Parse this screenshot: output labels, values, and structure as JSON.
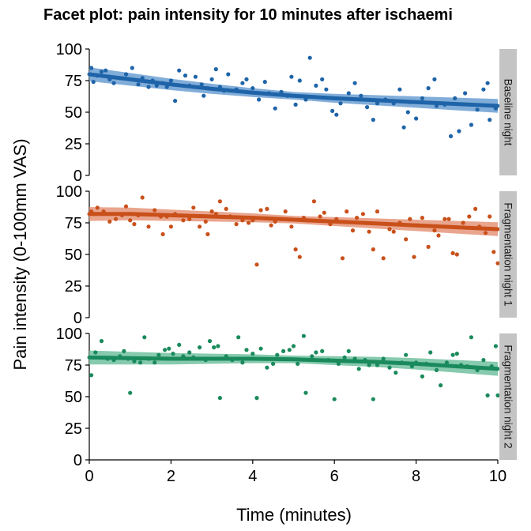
{
  "chart_data": {
    "type": "scatter",
    "title": "Facet plot: pain intensity for 10 minutes after ischaemi",
    "xlabel": "Time (minutes)",
    "ylabel": "Pain intensity (0-100mm VAS)",
    "xlim": [
      0,
      10
    ],
    "ylim": [
      0,
      100
    ],
    "x_ticks": [
      "0",
      "2",
      "4",
      "6",
      "8",
      "10"
    ],
    "y_ticks": [
      "0",
      "25",
      "50",
      "75",
      "100"
    ],
    "grid": false,
    "legend": "none",
    "trend": "smoothed fit with confidence band",
    "facets": [
      {
        "label": "Baseline night",
        "color": "#1f64a8",
        "band_color": "#6b9fd2",
        "points": [
          [
            0.05,
            85
          ],
          [
            0.1,
            74
          ],
          [
            0.2,
            79
          ],
          [
            0.3,
            82
          ],
          [
            0.4,
            83
          ],
          [
            0.5,
            76
          ],
          [
            0.6,
            73
          ],
          [
            0.9,
            80
          ],
          [
            1.05,
            85
          ],
          [
            1.2,
            72
          ],
          [
            1.3,
            77
          ],
          [
            1.45,
            70
          ],
          [
            1.55,
            75
          ],
          [
            1.65,
            71
          ],
          [
            1.8,
            73
          ],
          [
            1.9,
            70
          ],
          [
            2.0,
            75
          ],
          [
            2.1,
            59
          ],
          [
            2.2,
            83
          ],
          [
            2.35,
            79
          ],
          [
            2.45,
            71
          ],
          [
            2.6,
            78
          ],
          [
            2.75,
            72
          ],
          [
            2.8,
            63
          ],
          [
            2.9,
            69
          ],
          [
            3.0,
            76
          ],
          [
            3.1,
            84
          ],
          [
            3.2,
            70
          ],
          [
            3.3,
            67
          ],
          [
            3.4,
            80
          ],
          [
            3.6,
            68
          ],
          [
            3.75,
            73
          ],
          [
            3.85,
            76
          ],
          [
            4.0,
            69
          ],
          [
            4.15,
            60
          ],
          [
            4.3,
            74
          ],
          [
            4.4,
            65
          ],
          [
            4.55,
            53
          ],
          [
            4.7,
            66
          ],
          [
            4.85,
            63
          ],
          [
            4.95,
            78
          ],
          [
            5.05,
            56
          ],
          [
            5.15,
            75
          ],
          [
            5.3,
            60
          ],
          [
            5.4,
            93
          ],
          [
            5.55,
            71
          ],
          [
            5.7,
            76
          ],
          [
            5.8,
            68
          ],
          [
            5.95,
            51
          ],
          [
            6.05,
            48
          ],
          [
            6.15,
            57
          ],
          [
            6.35,
            65
          ],
          [
            6.5,
            73
          ],
          [
            6.65,
            63
          ],
          [
            6.8,
            54
          ],
          [
            6.95,
            44
          ],
          [
            7.05,
            57
          ],
          [
            7.25,
            60
          ],
          [
            7.45,
            57
          ],
          [
            7.6,
            68
          ],
          [
            7.7,
            38
          ],
          [
            7.8,
            50
          ],
          [
            7.85,
            58
          ],
          [
            8.0,
            45
          ],
          [
            8.15,
            61
          ],
          [
            8.3,
            69
          ],
          [
            8.45,
            76
          ],
          [
            8.5,
            55
          ],
          [
            8.7,
            56
          ],
          [
            8.85,
            31
          ],
          [
            8.95,
            61
          ],
          [
            9.05,
            35
          ],
          [
            9.2,
            65
          ],
          [
            9.35,
            40
          ],
          [
            9.5,
            52
          ],
          [
            9.65,
            68
          ],
          [
            9.75,
            73
          ],
          [
            9.8,
            44
          ],
          [
            9.9,
            55
          ],
          [
            9.95,
            53
          ]
        ],
        "trend_y": [
          80,
          76,
          72,
          68.5,
          65.5,
          63,
          61,
          59.5,
          58,
          56.5,
          55
        ]
      },
      {
        "label": "Fragmentation night 1",
        "color": "#c9501a",
        "band_color": "#e5957a",
        "points": [
          [
            0.05,
            84
          ],
          [
            0.1,
            82
          ],
          [
            0.2,
            87
          ],
          [
            0.35,
            84
          ],
          [
            0.5,
            76
          ],
          [
            0.65,
            78
          ],
          [
            0.8,
            81
          ],
          [
            0.9,
            88
          ],
          [
            1.0,
            77
          ],
          [
            1.1,
            74
          ],
          [
            1.2,
            81
          ],
          [
            1.3,
            95
          ],
          [
            1.45,
            72
          ],
          [
            1.6,
            85
          ],
          [
            1.75,
            80
          ],
          [
            1.8,
            66
          ],
          [
            1.9,
            80
          ],
          [
            2.0,
            72
          ],
          [
            2.1,
            82
          ],
          [
            2.3,
            77
          ],
          [
            2.45,
            78
          ],
          [
            2.55,
            87
          ],
          [
            2.7,
            72
          ],
          [
            2.85,
            76
          ],
          [
            2.9,
            66
          ],
          [
            3.0,
            84
          ],
          [
            3.1,
            82
          ],
          [
            3.2,
            92
          ],
          [
            3.35,
            86
          ],
          [
            3.45,
            80
          ],
          [
            3.6,
            74
          ],
          [
            3.75,
            77
          ],
          [
            3.9,
            75
          ],
          [
            4.0,
            77
          ],
          [
            4.1,
            42
          ],
          [
            4.2,
            85
          ],
          [
            4.35,
            86
          ],
          [
            4.45,
            73
          ],
          [
            4.55,
            76
          ],
          [
            4.7,
            78
          ],
          [
            4.8,
            84
          ],
          [
            4.95,
            72
          ],
          [
            5.05,
            54
          ],
          [
            5.15,
            48
          ],
          [
            5.25,
            79
          ],
          [
            5.35,
            77
          ],
          [
            5.5,
            92
          ],
          [
            5.65,
            80
          ],
          [
            5.75,
            83
          ],
          [
            5.9,
            74
          ],
          [
            6.05,
            78
          ],
          [
            6.2,
            47
          ],
          [
            6.3,
            84
          ],
          [
            6.45,
            69
          ],
          [
            6.55,
            79
          ],
          [
            6.7,
            82
          ],
          [
            6.85,
            68
          ],
          [
            6.95,
            54
          ],
          [
            7.05,
            84
          ],
          [
            7.2,
            47
          ],
          [
            7.35,
            70
          ],
          [
            7.45,
            68
          ],
          [
            7.6,
            75
          ],
          [
            7.75,
            62
          ],
          [
            7.85,
            78
          ],
          [
            7.95,
            48
          ],
          [
            8.05,
            73
          ],
          [
            8.15,
            79
          ],
          [
            8.3,
            56
          ],
          [
            8.45,
            69
          ],
          [
            8.55,
            65
          ],
          [
            8.7,
            78
          ],
          [
            8.8,
            78
          ],
          [
            8.9,
            51
          ],
          [
            9.0,
            50
          ],
          [
            9.15,
            75
          ],
          [
            9.3,
            80
          ],
          [
            9.45,
            86
          ],
          [
            9.55,
            72
          ],
          [
            9.7,
            67
          ],
          [
            9.8,
            80
          ],
          [
            9.9,
            52
          ],
          [
            10.0,
            43
          ]
        ],
        "trend_y": [
          82,
          82,
          81,
          80,
          79,
          77.5,
          76,
          74.5,
          73,
          71.5,
          70
        ]
      },
      {
        "label": "Fragmentation night 2",
        "color": "#1a8a5c",
        "band_color": "#72c1a0",
        "points": [
          [
            0.05,
            67
          ],
          [
            0.15,
            85
          ],
          [
            0.3,
            94
          ],
          [
            0.45,
            80
          ],
          [
            0.6,
            79
          ],
          [
            0.75,
            82
          ],
          [
            0.85,
            86
          ],
          [
            0.95,
            80
          ],
          [
            1.0,
            53
          ],
          [
            1.1,
            78
          ],
          [
            1.25,
            77
          ],
          [
            1.35,
            97
          ],
          [
            1.45,
            80
          ],
          [
            1.6,
            77
          ],
          [
            1.7,
            83
          ],
          [
            1.85,
            87
          ],
          [
            1.95,
            88
          ],
          [
            2.05,
            84
          ],
          [
            2.2,
            91
          ],
          [
            2.3,
            82
          ],
          [
            2.45,
            85
          ],
          [
            2.55,
            81
          ],
          [
            2.7,
            89
          ],
          [
            2.85,
            79
          ],
          [
            2.95,
            94
          ],
          [
            3.05,
            89
          ],
          [
            3.15,
            90
          ],
          [
            3.2,
            49
          ],
          [
            3.35,
            82
          ],
          [
            3.5,
            79
          ],
          [
            3.65,
            97
          ],
          [
            3.75,
            77
          ],
          [
            3.85,
            87
          ],
          [
            4.0,
            84
          ],
          [
            4.1,
            49
          ],
          [
            4.2,
            88
          ],
          [
            4.35,
            73
          ],
          [
            4.5,
            76
          ],
          [
            4.6,
            83
          ],
          [
            4.75,
            86
          ],
          [
            4.9,
            87
          ],
          [
            5.0,
            90
          ],
          [
            5.1,
            76
          ],
          [
            5.25,
            98
          ],
          [
            5.3,
            53
          ],
          [
            5.45,
            82
          ],
          [
            5.55,
            85
          ],
          [
            5.7,
            86
          ],
          [
            5.85,
            79
          ],
          [
            6.0,
            48
          ],
          [
            6.1,
            76
          ],
          [
            6.25,
            81
          ],
          [
            6.35,
            86
          ],
          [
            6.5,
            80
          ],
          [
            6.6,
            72
          ],
          [
            6.75,
            79
          ],
          [
            6.85,
            75
          ],
          [
            6.95,
            48
          ],
          [
            7.05,
            75
          ],
          [
            7.2,
            80
          ],
          [
            7.35,
            73
          ],
          [
            7.5,
            69
          ],
          [
            7.65,
            77
          ],
          [
            7.75,
            83
          ],
          [
            7.9,
            74
          ],
          [
            8.0,
            77
          ],
          [
            8.15,
            66
          ],
          [
            8.25,
            76
          ],
          [
            8.35,
            85
          ],
          [
            8.5,
            71
          ],
          [
            8.6,
            59
          ],
          [
            8.75,
            77
          ],
          [
            8.9,
            83
          ],
          [
            9.0,
            84
          ],
          [
            9.1,
            75
          ],
          [
            9.25,
            74
          ],
          [
            9.35,
            97
          ],
          [
            9.5,
            71
          ],
          [
            9.65,
            79
          ],
          [
            9.75,
            51
          ],
          [
            9.85,
            74
          ],
          [
            9.95,
            90
          ],
          [
            10.0,
            51
          ]
        ],
        "trend_y": [
          81,
          80.5,
          80,
          80,
          80,
          79.5,
          78.5,
          77.5,
          76,
          74,
          72
        ]
      }
    ]
  }
}
